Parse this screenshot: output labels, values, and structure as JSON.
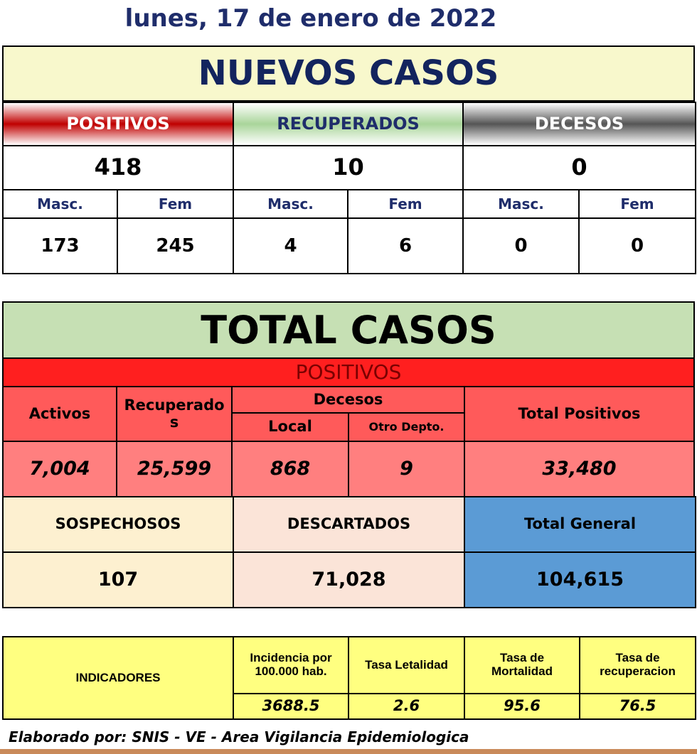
{
  "date": "lunes, 17 de enero de 2022",
  "nuevos_casos": {
    "title": "NUEVOS CASOS",
    "groups": [
      {
        "label": "POSITIVOS",
        "total": "418",
        "masc_label": "Masc.",
        "fem_label": "Fem",
        "masc": "173",
        "fem": "245"
      },
      {
        "label": "RECUPERADOS",
        "total": "10",
        "masc_label": "Masc.",
        "fem_label": "Fem",
        "masc": "4",
        "fem": "6"
      },
      {
        "label": "DECESOS",
        "total": "0",
        "masc_label": "Masc.",
        "fem_label": "Fem",
        "masc": "0",
        "fem": "0"
      }
    ]
  },
  "total_casos": {
    "title": "TOTAL CASOS",
    "positivos": "POSITIVOS",
    "headers": {
      "activos": "Activos",
      "recuperados": "Recuperados",
      "decesos": "Decesos",
      "local": "Local",
      "otro_depto": "Otro Depto.",
      "total_positivos": "Total Positivos"
    },
    "values": {
      "activos": "7,004",
      "recuperados": "25,599",
      "local": "868",
      "otro_depto": "9",
      "total_positivos": "33,480"
    },
    "summary": [
      {
        "label": "SOSPECHOSOS",
        "value": "107"
      },
      {
        "label": "DESCARTADOS",
        "value": "71,028"
      },
      {
        "label": "Total General",
        "value": "104,615"
      }
    ]
  },
  "indicadores": {
    "label": "INDICADORES",
    "items": [
      {
        "label": "Incidencia por 100.000 hab.",
        "value": "3688.5"
      },
      {
        "label": "Tasa Letalidad",
        "value": "2.6"
      },
      {
        "label": "Tasa de Mortalidad",
        "value": "95.6"
      },
      {
        "label": "Tasa de recuperacion",
        "value": "76.5"
      }
    ]
  },
  "footer": "Elaborado por:  SNIS - VE  - Area Vigilancia Epidemiologica"
}
